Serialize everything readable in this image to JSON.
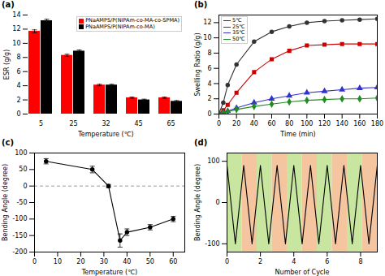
{
  "chart_data": [
    {
      "type": "bar",
      "title": "(a)",
      "categories": [
        5,
        25,
        32,
        45,
        65
      ],
      "series": [
        {
          "name": "PNaAMPS/P(NIPAm-co-MA-co-SPMA)",
          "color": "red",
          "values": [
            11.7,
            8.3,
            4.1,
            2.3,
            2.3
          ],
          "errors": [
            0.2,
            0.15,
            0.1,
            0.1,
            0.1
          ]
        },
        {
          "name": "PNaAMPS/P(NIPAm-co-MA)",
          "color": "black",
          "values": [
            13.2,
            8.9,
            4.1,
            2.0,
            1.8
          ],
          "errors": [
            0.2,
            0.15,
            0.1,
            0.1,
            0.1
          ]
        }
      ],
      "xlabel": "Temperature (℃)",
      "ylabel": "ESR (g/g)",
      "ylim": [
        0,
        14
      ],
      "yticks": [
        0,
        2,
        4,
        6,
        8,
        10,
        12,
        14
      ],
      "legend": "upper right"
    },
    {
      "type": "line",
      "title": "(b)",
      "x": [
        0,
        5,
        10,
        20,
        40,
        60,
        80,
        100,
        120,
        140,
        160,
        180
      ],
      "series": [
        {
          "name": "5℃",
          "color": "#333333",
          "marker": "circle",
          "values": [
            0.05,
            1.5,
            3.8,
            6.5,
            9.5,
            10.8,
            11.5,
            12.0,
            12.2,
            12.3,
            12.4,
            12.5
          ]
        },
        {
          "name": "25℃",
          "color": "#cc0000",
          "marker": "square",
          "values": [
            0.05,
            0.5,
            1.2,
            2.8,
            5.5,
            7.2,
            8.3,
            9.0,
            9.1,
            9.2,
            9.2,
            9.2
          ]
        },
        {
          "name": "35℃",
          "color": "#3333cc",
          "marker": "triangle",
          "values": [
            0.05,
            0.2,
            0.4,
            0.8,
            1.5,
            2.0,
            2.4,
            2.8,
            3.0,
            3.2,
            3.4,
            3.5
          ]
        },
        {
          "name": "50℃",
          "color": "#228b22",
          "marker": "diamond",
          "values": [
            0.05,
            0.15,
            0.3,
            0.6,
            1.0,
            1.3,
            1.6,
            1.8,
            1.9,
            2.0,
            2.0,
            2.1
          ]
        }
      ],
      "xlabel": "Time (min)",
      "ylabel": "Swelling Ratio (g/g)",
      "xlim": [
        0,
        180
      ],
      "xticks": [
        0,
        20,
        40,
        60,
        80,
        100,
        120,
        140,
        160,
        180
      ],
      "ylim": [
        0,
        13
      ],
      "yticks": [
        0,
        2,
        4,
        6,
        8,
        10,
        12
      ],
      "legend": "upper left"
    },
    {
      "type": "line",
      "title": "(c)",
      "x": [
        5,
        25,
        32,
        37,
        40,
        50,
        60
      ],
      "values": [
        75,
        50,
        0,
        -165,
        -140,
        -125,
        -100
      ],
      "errors": [
        8,
        10,
        5,
        20,
        10,
        8,
        8
      ],
      "color": "black",
      "marker": "circle",
      "reference_lines": [
        {
          "y": 0,
          "color": "gray",
          "line_style": "dashed"
        }
      ],
      "xlabel": "Temperature (℃)",
      "ylabel": "Bending Angle (degree)",
      "xlim": [
        0,
        65
      ],
      "xticks": [
        0,
        10,
        20,
        30,
        40,
        50,
        60
      ],
      "ylim": [
        -200,
        100
      ],
      "yticks": [
        -200,
        -150,
        -100,
        -50,
        0,
        50,
        100
      ]
    },
    {
      "type": "line",
      "title": "(d)",
      "x": [
        0,
        0.5,
        1,
        1.5,
        2,
        2.5,
        3,
        3.5,
        4,
        4.5,
        5,
        5.5,
        6,
        6.5,
        7,
        7.5,
        8,
        8.5,
        9
      ],
      "values": [
        90,
        -100,
        90,
        -100,
        90,
        -100,
        90,
        -100,
        90,
        -100,
        90,
        -100,
        90,
        -100,
        90,
        -100,
        90,
        -100,
        90
      ],
      "color": "black",
      "bands": [
        {
          "x1": 0,
          "x2": 0.9,
          "color": "#c8e6a0"
        },
        {
          "x1": 0.9,
          "x2": 1.8,
          "color": "#f5c5a0"
        },
        {
          "x1": 1.8,
          "x2": 2.7,
          "color": "#c8e6a0"
        },
        {
          "x1": 2.7,
          "x2": 3.6,
          "color": "#f5c5a0"
        },
        {
          "x1": 3.6,
          "x2": 4.5,
          "color": "#c8e6a0"
        },
        {
          "x1": 4.5,
          "x2": 5.4,
          "color": "#f5c5a0"
        },
        {
          "x1": 5.4,
          "x2": 6.3,
          "color": "#c8e6a0"
        },
        {
          "x1": 6.3,
          "x2": 7.2,
          "color": "#f5c5a0"
        },
        {
          "x1": 7.2,
          "x2": 8.1,
          "color": "#c8e6a0"
        },
        {
          "x1": 8.1,
          "x2": 9,
          "color": "#f5c5a0"
        }
      ],
      "xlabel": "Number of Cycle",
      "ylabel": "Bending Angle (degree)",
      "xlim": [
        0,
        9
      ],
      "xticks": [
        0,
        2,
        4,
        6,
        8
      ],
      "ylim": [
        -120,
        120
      ],
      "yticks": [
        -100,
        0,
        100
      ]
    }
  ]
}
